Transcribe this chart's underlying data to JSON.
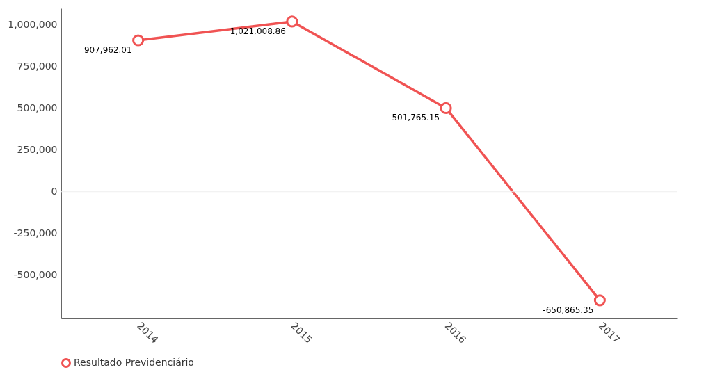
{
  "chart_data": {
    "type": "line",
    "categories": [
      "2014",
      "2015",
      "2016",
      "2017"
    ],
    "series": [
      {
        "name": "Resultado Previdenciário",
        "color": "#f05353",
        "values": [
          907962.01,
          1021008.86,
          501765.15,
          -650865.35
        ],
        "value_labels": [
          "907,962.01",
          "1,021,008.86",
          "501,765.15",
          "-650,865.35"
        ]
      }
    ],
    "ylim": [
      -760000,
      1100000
    ],
    "yticks": [
      {
        "value": -500000,
        "label": "-500,000"
      },
      {
        "value": -250000,
        "label": "-250,000"
      },
      0,
      {
        "value": 250000,
        "label": "250,000"
      },
      {
        "value": 500000,
        "label": "500,000"
      },
      {
        "value": 750000,
        "label": "750,000"
      },
      {
        "value": 1000000,
        "label": "1,000,000"
      }
    ],
    "ref_lines": [
      {
        "axis": "y",
        "value": 0,
        "color": "#eeeeee"
      }
    ],
    "grid": false,
    "legend": "bottom",
    "marker": "circle",
    "line_style": "solid"
  }
}
